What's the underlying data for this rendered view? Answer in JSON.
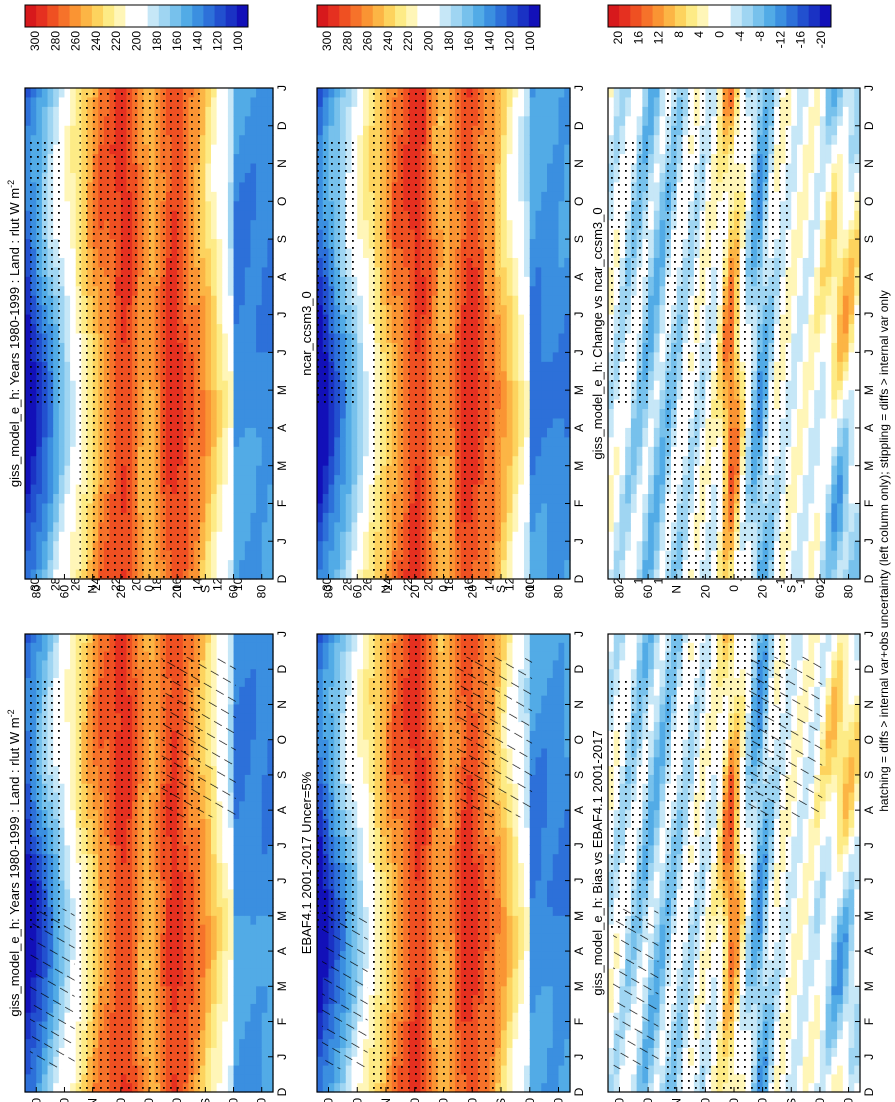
{
  "chart_data": [
    {
      "type": "heatmap",
      "panel": "top-left",
      "title": "giss_model_e_h: Years 1980-1999 : Land : rlut W m",
      "title_superscript": "-2",
      "x_axis_label": "N",
      "x_axis_label2": "S",
      "x_ticks": [
        "80",
        "60",
        "N",
        "20",
        "0",
        "20",
        "S",
        "60",
        "80"
      ],
      "y_ticks": [
        "D",
        "J",
        "F",
        "M",
        "A",
        "M",
        "J",
        "J",
        "A",
        "S",
        "O",
        "N",
        "D",
        "J"
      ],
      "colorbar_ticks": [
        "300",
        "280",
        "260",
        "240",
        "220",
        "200",
        "180",
        "160",
        "140",
        "120",
        "100"
      ],
      "overlay": "hatching and stippling"
    },
    {
      "type": "heatmap",
      "panel": "top-right",
      "title": "giss_model_e_h: Years 1980-1999 : Land : rlut W m",
      "title_superscript": "-2",
      "x_ticks": [
        "80",
        "60",
        "N",
        "20",
        "0",
        "20",
        "S",
        "60",
        "80"
      ],
      "y_ticks": [
        "D",
        "J",
        "F",
        "M",
        "A",
        "M",
        "J",
        "J",
        "A",
        "S",
        "O",
        "N",
        "D",
        "J"
      ],
      "colorbar_ticks": [
        "300",
        "280",
        "260",
        "240",
        "220",
        "200",
        "180",
        "160",
        "140",
        "120",
        "100"
      ],
      "overlay": "stippling"
    },
    {
      "type": "heatmap",
      "panel": "middle-left",
      "title": "EBAF4.1 2001-2017 Uncer=5%",
      "x_ticks": [
        "80",
        "60",
        "N",
        "20",
        "0",
        "20",
        "S",
        "60",
        "80"
      ],
      "y_ticks": [
        "D",
        "J",
        "F",
        "M",
        "A",
        "M",
        "J",
        "J",
        "A",
        "S",
        "O",
        "N",
        "D",
        "J"
      ],
      "colorbar_ticks": [
        "300",
        "280",
        "260",
        "240",
        "220",
        "200",
        "180",
        "160",
        "140",
        "120",
        "100"
      ],
      "overlay": "hatching and stippling"
    },
    {
      "type": "heatmap",
      "panel": "middle-right",
      "title": "ncar_ccsm3_0",
      "x_ticks": [
        "80",
        "60",
        "N",
        "20",
        "0",
        "20",
        "S",
        "60",
        "80"
      ],
      "y_ticks": [
        "D",
        "J",
        "F",
        "M",
        "A",
        "M",
        "J",
        "J",
        "A",
        "S",
        "O",
        "N",
        "D",
        "J"
      ],
      "colorbar_ticks": [
        "300",
        "280",
        "260",
        "240",
        "220",
        "200",
        "180",
        "160",
        "140",
        "120",
        "100"
      ],
      "overlay": "stippling"
    },
    {
      "type": "heatmap",
      "panel": "bottom-left",
      "title": "giss_model_e_h: Bias vs EBAF4.1 2001-2017",
      "x_ticks": [
        "80",
        "60",
        "N",
        "20",
        "0",
        "20",
        "S",
        "60",
        "80"
      ],
      "y_ticks": [
        "D",
        "J",
        "F",
        "M",
        "A",
        "M",
        "J",
        "J",
        "A",
        "S",
        "O",
        "N",
        "D",
        "J"
      ],
      "colorbar_ticks": [
        "20",
        "16",
        "12",
        "8",
        "4",
        "0",
        "-4",
        "-8",
        "-12",
        "-16",
        "-20"
      ],
      "overlay": "hatching and stippling"
    },
    {
      "type": "heatmap",
      "panel": "bottom-right",
      "title": "giss_model_e_h: Change vs ncar_ccsm3_0",
      "x_ticks": [
        "80",
        "60",
        "N",
        "20",
        "0",
        "20",
        "S",
        "60",
        "80"
      ],
      "y_ticks": [
        "D",
        "J",
        "F",
        "M",
        "A",
        "M",
        "J",
        "J",
        "A",
        "S",
        "O",
        "N",
        "D",
        "J"
      ],
      "colorbar_ticks": [
        "20",
        "16",
        "12",
        "8",
        "4",
        "0",
        "-4",
        "-8",
        "-12",
        "-16",
        "-20"
      ],
      "overlay": "stippling"
    }
  ],
  "footnote": "hatching = diffs > internal var+obs uncertainty (left column only); stippling = diffs > internal var only",
  "colors": {
    "abs_scale": [
      "#d7191c",
      "#e53020",
      "#ef5022",
      "#f6722a",
      "#fa9433",
      "#fcb545",
      "#fdd35e",
      "#fdeb86",
      "#fff6b8",
      "#ffffff",
      "#ffffff",
      "#c6e7f7",
      "#9fd5f2",
      "#77c1ec",
      "#52abe6",
      "#3b8fe0",
      "#2d70d9",
      "#2250cf",
      "#1a32c4",
      "#1210b8"
    ],
    "diff_scale": [
      "#d7191c",
      "#e53020",
      "#ef5022",
      "#f6722a",
      "#fa9433",
      "#fcb545",
      "#fdd35e",
      "#fdeb86",
      "#fff6b8",
      "#ffffff",
      "#ffffff",
      "#c6e7f7",
      "#9fd5f2",
      "#77c1ec",
      "#52abe6",
      "#3b8fe0",
      "#2d70d9",
      "#2250cf",
      "#1a32c4",
      "#1210b8"
    ]
  }
}
